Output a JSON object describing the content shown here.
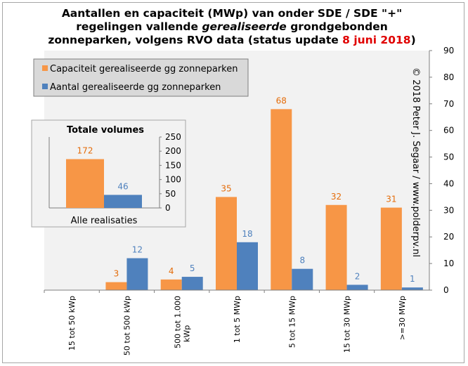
{
  "title": {
    "line1": "Aantallen en capaciteit (MWp) van onder SDE / SDE \"+\"",
    "line2_pre": "regelingen vallende ",
    "line2_em": "gerealiseerde",
    "line2_post": " grondgebonden",
    "line3_pre": "zonneparken, volgens RVO data (status update ",
    "line3_red": "8 juni 2018",
    "line3_post": ")"
  },
  "copyright": "© 2018 Peter J. Segaar / www.polderpv.nl",
  "colors": {
    "capaciteit": "#f79646",
    "aantal": "#4f81bd",
    "plot_bg": "#f2f2f2",
    "label_orange": "#e46c0a",
    "label_blue": "#4f81bd"
  },
  "chart_data": [
    {
      "type": "bar",
      "categories": [
        "15 tot 50 kWp",
        "50 tot 500 kWp",
        "500 tot 1.000 kWp",
        "1 tot 5 MWp",
        "5 tot 15 MWp",
        "15 tot 30 MWp",
        ">=30 MWp"
      ],
      "series": [
        {
          "name": "Capaciteit gerealiseerde gg zonneparken",
          "values": [
            0,
            3,
            4,
            35,
            68,
            32,
            31
          ],
          "labels": [
            "",
            "3",
            "4",
            "35",
            "68",
            "32",
            "31"
          ]
        },
        {
          "name": "Aantal gerealiseerde gg zonneparken",
          "values": [
            0,
            12,
            5,
            18,
            8,
            2,
            1
          ],
          "labels": [
            "",
            "12",
            "5",
            "18",
            "8",
            "2",
            "1"
          ]
        }
      ],
      "yticks": [
        "0",
        "10",
        "20",
        "30",
        "40",
        "50",
        "60",
        "70",
        "80",
        "90"
      ],
      "ylim": [
        0,
        90
      ],
      "yaxis_position": "right",
      "legend_position": "top-left",
      "grid": false
    },
    {
      "type": "bar",
      "title": "Totale volumes",
      "categories": [
        "Alle realisaties"
      ],
      "series": [
        {
          "name": "Capaciteit gerealiseerde gg zonneparken",
          "values": [
            172
          ],
          "labels": [
            "172"
          ]
        },
        {
          "name": "Aantal gerealiseerde gg zonneparken",
          "values": [
            46
          ],
          "labels": [
            "46"
          ]
        }
      ],
      "yticks": [
        "0",
        "50",
        "100",
        "150",
        "200",
        "250"
      ],
      "ylim": [
        0,
        250
      ],
      "yaxis_position": "right"
    }
  ]
}
